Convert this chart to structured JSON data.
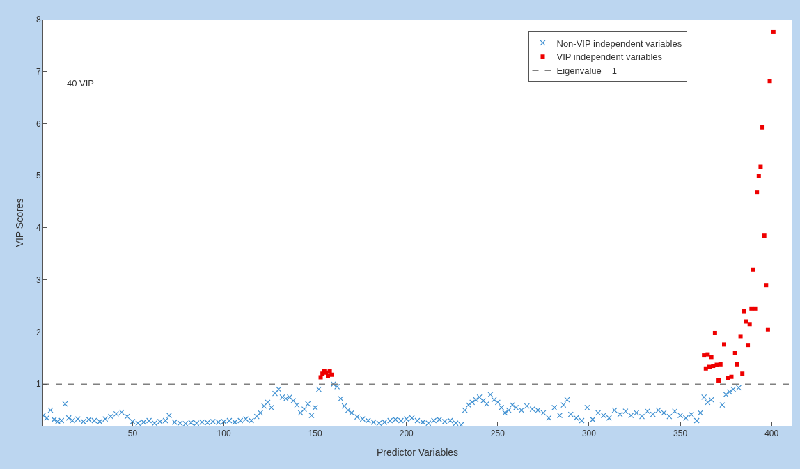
{
  "chart_data": {
    "type": "scatter",
    "xlabel": "Predictor Variables",
    "ylabel": "VIP Scores",
    "annotations": [
      "40 VIP"
    ],
    "xlim": [
      1,
      411
    ],
    "ylim": [
      0.2,
      8
    ],
    "xticks": [
      50,
      100,
      150,
      200,
      250,
      300,
      350,
      400
    ],
    "yticks": [
      1,
      2,
      3,
      4,
      5,
      6,
      7,
      8
    ],
    "legend": "top right",
    "ref_lines": [
      {
        "axis": "y",
        "value": 1,
        "label": "Eigenvalue = 1",
        "color": "#808080",
        "line_style": "dashed"
      }
    ],
    "series": [
      {
        "name": "Non-VIP independent variables",
        "color": "#3d8fd1",
        "marker": "cross",
        "x": [
          1,
          3,
          5,
          7,
          9,
          11,
          13,
          15,
          17,
          20,
          23,
          26,
          29,
          32,
          35,
          38,
          41,
          44,
          47,
          50,
          53,
          56,
          59,
          62,
          65,
          68,
          70,
          73,
          76,
          79,
          82,
          85,
          88,
          91,
          94,
          97,
          100,
          103,
          106,
          109,
          112,
          115,
          118,
          120,
          122,
          124,
          126,
          128,
          130,
          132,
          134,
          136,
          138,
          140,
          142,
          144,
          146,
          148,
          150,
          152,
          160,
          162,
          164,
          166,
          168,
          170,
          173,
          176,
          179,
          182,
          185,
          188,
          191,
          194,
          197,
          200,
          203,
          206,
          209,
          212,
          215,
          218,
          221,
          224,
          227,
          230,
          232,
          234,
          236,
          238,
          240,
          242,
          244,
          246,
          248,
          250,
          252,
          254,
          256,
          258,
          260,
          263,
          266,
          269,
          272,
          275,
          278,
          281,
          284,
          286,
          288,
          290,
          293,
          296,
          299,
          302,
          305,
          308,
          311,
          314,
          317,
          320,
          323,
          326,
          329,
          332,
          335,
          338,
          341,
          344,
          347,
          350,
          353,
          356,
          359,
          361,
          363,
          365,
          367,
          373,
          375,
          377,
          379,
          382
        ],
        "values": [
          0.4,
          0.35,
          0.5,
          0.32,
          0.28,
          0.3,
          0.62,
          0.35,
          0.3,
          0.33,
          0.28,
          0.32,
          0.3,
          0.28,
          0.33,
          0.38,
          0.43,
          0.46,
          0.38,
          0.28,
          0.25,
          0.27,
          0.3,
          0.25,
          0.28,
          0.3,
          0.4,
          0.27,
          0.25,
          0.24,
          0.26,
          0.25,
          0.27,
          0.26,
          0.28,
          0.27,
          0.28,
          0.3,
          0.27,
          0.3,
          0.33,
          0.3,
          0.38,
          0.45,
          0.58,
          0.65,
          0.55,
          0.82,
          0.9,
          0.75,
          0.72,
          0.75,
          0.68,
          0.6,
          0.45,
          0.52,
          0.62,
          0.4,
          0.55,
          0.9,
          1.0,
          0.95,
          0.72,
          0.58,
          0.5,
          0.45,
          0.37,
          0.33,
          0.3,
          0.27,
          0.25,
          0.27,
          0.3,
          0.32,
          0.3,
          0.33,
          0.35,
          0.3,
          0.27,
          0.25,
          0.3,
          0.32,
          0.28,
          0.3,
          0.25,
          0.22,
          0.5,
          0.6,
          0.65,
          0.7,
          0.75,
          0.68,
          0.62,
          0.8,
          0.7,
          0.65,
          0.55,
          0.45,
          0.5,
          0.6,
          0.55,
          0.5,
          0.58,
          0.52,
          0.5,
          0.45,
          0.35,
          0.55,
          0.4,
          0.6,
          0.7,
          0.42,
          0.35,
          0.3,
          0.55,
          0.32,
          0.45,
          0.4,
          0.35,
          0.5,
          0.42,
          0.48,
          0.4,
          0.45,
          0.38,
          0.48,
          0.42,
          0.5,
          0.45,
          0.38,
          0.48,
          0.4,
          0.35,
          0.42,
          0.3,
          0.45,
          0.75,
          0.65,
          0.7,
          0.6,
          0.8,
          0.85,
          0.9,
          0.93
        ]
      },
      {
        "name": "VIP independent variables",
        "color": "#ee0000",
        "marker": "square",
        "x": [
          153,
          154,
          155,
          156,
          157,
          158,
          159,
          363,
          364,
          365,
          366,
          367,
          368,
          369,
          370,
          371,
          372,
          374,
          376,
          378,
          380,
          381,
          383,
          384,
          385,
          386,
          387,
          388,
          389,
          390,
          391,
          392,
          393,
          394,
          395,
          396,
          397,
          398,
          399,
          401
        ],
        "values": [
          1.13,
          1.2,
          1.25,
          1.22,
          1.15,
          1.25,
          1.18,
          1.55,
          1.3,
          1.57,
          1.33,
          1.52,
          1.35,
          1.98,
          1.37,
          1.07,
          1.38,
          1.76,
          1.12,
          1.14,
          1.6,
          1.38,
          1.92,
          1.2,
          2.4,
          2.2,
          1.75,
          2.15,
          2.45,
          3.2,
          2.45,
          4.68,
          5.0,
          5.17,
          5.93,
          3.85,
          2.9,
          2.05,
          6.82,
          7.76
        ]
      }
    ]
  }
}
